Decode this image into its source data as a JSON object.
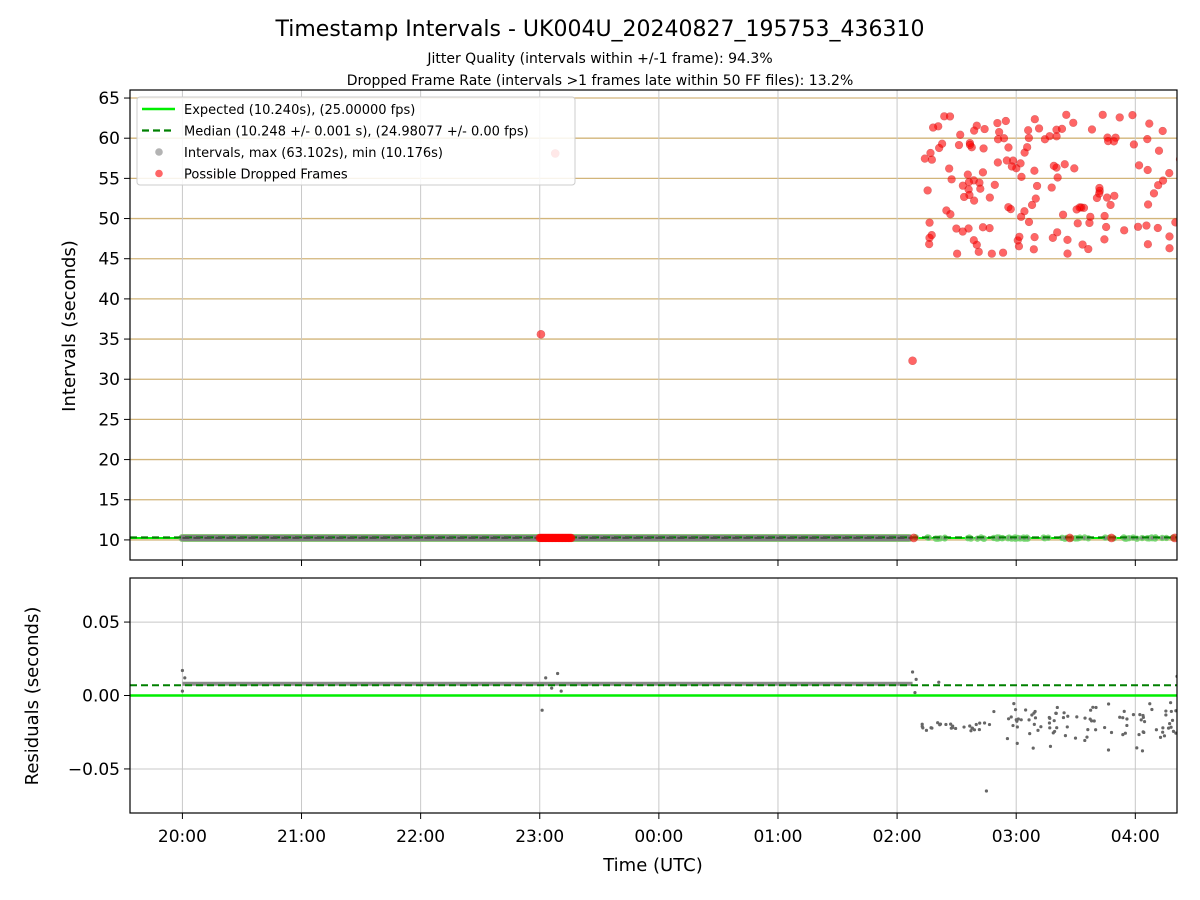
{
  "chart_data": {
    "type": "scatter",
    "title": "Timestamp Intervals - UK004U_20240827_195753_436310",
    "subtitles": [
      "Jitter Quality (intervals within +/-1 frame): 94.3%",
      "Dropped Frame Rate (intervals >1 frames late within 50 FF files): 13.2%"
    ],
    "xlabel": "Time (UTC)",
    "x_tick_labels": [
      "20:00",
      "21:00",
      "22:00",
      "23:00",
      "00:00",
      "01:00",
      "02:00",
      "03:00",
      "04:00"
    ],
    "x_range_hours_after_2000": [
      -0.44,
      8.35
    ],
    "colors": {
      "expected": "#00ee00",
      "median": "#008000",
      "intervals": "#808080",
      "dropped": "#ff0000",
      "grid_top": "#d2b57a",
      "grid": "#c8c8c8"
    },
    "legend_position": "upper-left",
    "top_panel": {
      "ylabel": "Intervals (seconds)",
      "ylim": [
        7.5,
        66.0
      ],
      "y_ticks": [
        10,
        15,
        20,
        25,
        30,
        35,
        40,
        45,
        50,
        55,
        60,
        65
      ],
      "grid": true,
      "legend": [
        {
          "label": "Expected (10.240s), (25.00000 fps)",
          "kind": "line",
          "color": "#00ee00"
        },
        {
          "label": "Median (10.248 +/- 0.001 s), (24.98077 +/- 0.00 fps)",
          "kind": "dashed",
          "color": "#008000"
        },
        {
          "label": "Intervals, max (63.102s), min (10.176s)",
          "kind": "marker",
          "color": "#808080"
        },
        {
          "label": "Possible Dropped Frames",
          "kind": "marker",
          "color": "#ff0000"
        }
      ],
      "expected_value": 10.24,
      "median_value": 10.248,
      "interval_segments": [
        {
          "from": 0.0,
          "to": 6.1,
          "value": 10.24
        }
      ],
      "dropped_band": {
        "from": 3.0,
        "to": 3.27,
        "value": 10.24
      },
      "isolated_dropped": [
        {
          "x": 3.01,
          "y": 35.6
        },
        {
          "x": 3.13,
          "y": 58.1
        },
        {
          "x": 6.13,
          "y": 32.3
        },
        {
          "x": 6.14,
          "y": 10.24
        },
        {
          "x": 7.45,
          "y": 10.24
        },
        {
          "x": 7.8,
          "y": 10.24
        },
        {
          "x": 8.33,
          "y": 10.24
        }
      ],
      "dropped_cluster": {
        "x_from": 6.15,
        "x_to": 8.35,
        "count": 150,
        "y_min": 45.5,
        "y_max": 63.1
      },
      "late_intervals_x_from": 6.15
    },
    "bottom_panel": {
      "ylabel": "Residuals (seconds)",
      "ylim": [
        -0.08,
        0.08
      ],
      "y_ticks": [
        0.05,
        0.0,
        -0.05
      ],
      "y_tick_labels": [
        "0.05",
        "0.00",
        "−0.05"
      ],
      "grid": true,
      "expected_value": 0.0,
      "median_value": 0.007,
      "residual_band": {
        "from": 0.0,
        "to": 6.13,
        "value": 0.008
      },
      "outliers": [
        {
          "x": 0.0,
          "y": 0.017
        },
        {
          "x": 0.0,
          "y": 0.003
        },
        {
          "x": 0.02,
          "y": 0.012
        },
        {
          "x": 3.02,
          "y": -0.01
        },
        {
          "x": 3.05,
          "y": 0.012
        },
        {
          "x": 3.15,
          "y": 0.015
        },
        {
          "x": 3.18,
          "y": 0.003
        },
        {
          "x": 3.1,
          "y": 0.005
        },
        {
          "x": 6.13,
          "y": 0.016
        },
        {
          "x": 6.15,
          "y": 0.002
        },
        {
          "x": 6.16,
          "y": 0.011
        },
        {
          "x": 6.35,
          "y": 0.009
        },
        {
          "x": 6.75,
          "y": -0.065
        },
        {
          "x": 8.35,
          "y": 0.013
        }
      ],
      "late_residuals": {
        "x_from": 6.2,
        "x_to": 8.35,
        "count": 120,
        "y_min": -0.04,
        "y_max": 0.0
      }
    }
  }
}
